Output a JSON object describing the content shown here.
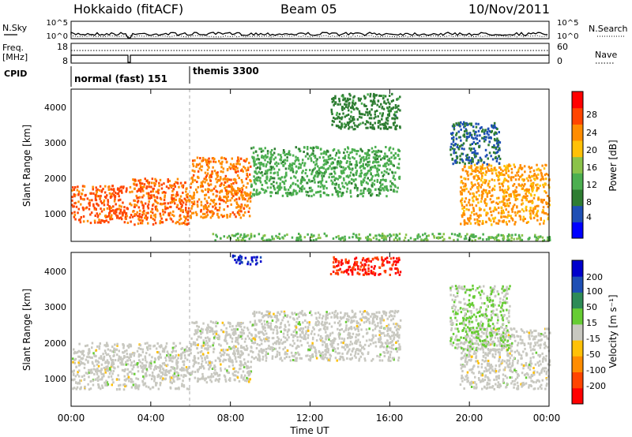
{
  "header": {
    "site": "Hokkaido (fitACF)",
    "beam": "Beam 05",
    "date": "10/Nov/2011"
  },
  "top_panels": {
    "nsky_label": "N.Sky",
    "nsearch_label": "N.Search",
    "noise_ticks_left": [
      "10^5",
      "10^0"
    ],
    "noise_ticks_right": [
      "10^5",
      "10^0"
    ],
    "freq_label_line1": "Freq.",
    "freq_label_line2": "[MHz]",
    "freq_ticks": [
      "18",
      "8"
    ],
    "nave_label": "Nave",
    "nave_ticks": [
      "60",
      "0"
    ],
    "cpid_label": "CPID",
    "cpid_segments": [
      {
        "label": "normal (fast) 151",
        "start_hour": 0
      },
      {
        "label": "themis 3300",
        "start_hour": 6
      }
    ]
  },
  "colors": {
    "power_scale": [
      "#0000ff",
      "#1e4fb5",
      "#2e7d32",
      "#4caf50",
      "#8bc34a",
      "#ffc107",
      "#ff8c00",
      "#ff4500",
      "#ff0000"
    ],
    "velocity_scale": [
      "#ff0000",
      "#ff4500",
      "#ff8c00",
      "#ffc107",
      "#c8c8c0",
      "#66cc33",
      "#2e8b57",
      "#1e4fb5",
      "#0000cc"
    ]
  },
  "chart_data": [
    {
      "type": "heatmap",
      "name": "power",
      "xlabel": "",
      "ylabel": "Slant Range [km]",
      "xlim_hours": [
        0,
        24
      ],
      "ylim": [
        200,
        4500
      ],
      "yticks": [
        "1000",
        "2000",
        "3000",
        "4000"
      ],
      "colorbar": {
        "label": "Power [dB]",
        "ticks": [
          "4",
          "8",
          "12",
          "16",
          "20",
          "24",
          "28"
        ],
        "range": [
          0,
          32
        ]
      },
      "echo_regions": [
        {
          "x": [
            0.0,
            2.8
          ],
          "y": [
            750,
            1800
          ],
          "value": 26
        },
        {
          "x": [
            2.9,
            6.0
          ],
          "y": [
            700,
            2000
          ],
          "value": 25
        },
        {
          "x": [
            6.0,
            9.0
          ],
          "y": [
            900,
            2600
          ],
          "value": 24
        },
        {
          "x": [
            9.0,
            16.5
          ],
          "y": [
            1500,
            2900
          ],
          "value": 12
        },
        {
          "x": [
            13.0,
            16.5
          ],
          "y": [
            3400,
            4400
          ],
          "value": 9
        },
        {
          "x": [
            19.5,
            24.0
          ],
          "y": [
            700,
            2400
          ],
          "value": 22
        },
        {
          "x": [
            19.0,
            21.5
          ],
          "y": [
            2400,
            3600
          ],
          "value": 7
        },
        {
          "x": [
            7.0,
            24.0
          ],
          "y": [
            250,
            450
          ],
          "value": 14
        }
      ]
    },
    {
      "type": "heatmap",
      "name": "velocity",
      "xlabel": "Time UT",
      "ylabel": "Slant Range [km]",
      "xlim_hours": [
        0,
        24
      ],
      "ylim": [
        200,
        4500
      ],
      "xticks": [
        "00:00",
        "04:00",
        "08:00",
        "12:00",
        "16:00",
        "20:00",
        "00:00"
      ],
      "yticks": [
        "1000",
        "2000",
        "3000",
        "4000"
      ],
      "colorbar": {
        "label": "Velocity [m s⁻¹]",
        "ticks": [
          "200",
          "100",
          "50",
          "15",
          "-15",
          "-50",
          "-100",
          "-200"
        ],
        "range": [
          -250,
          250
        ]
      },
      "echo_regions": [
        {
          "x": [
            0.0,
            6.0
          ],
          "y": [
            700,
            2000
          ],
          "value": 0
        },
        {
          "x": [
            6.0,
            9.0
          ],
          "y": [
            900,
            2600
          ],
          "value": 0
        },
        {
          "x": [
            9.0,
            16.5
          ],
          "y": [
            1500,
            2900
          ],
          "value": 0
        },
        {
          "x": [
            13.0,
            16.5
          ],
          "y": [
            3900,
            4400
          ],
          "value": -200
        },
        {
          "x": [
            8.0,
            9.5
          ],
          "y": [
            4200,
            4450
          ],
          "value": 200
        },
        {
          "x": [
            19.5,
            24.0
          ],
          "y": [
            700,
            2400
          ],
          "value": 0
        },
        {
          "x": [
            19.0,
            22.0
          ],
          "y": [
            1800,
            3600
          ],
          "value": 30
        }
      ]
    }
  ]
}
